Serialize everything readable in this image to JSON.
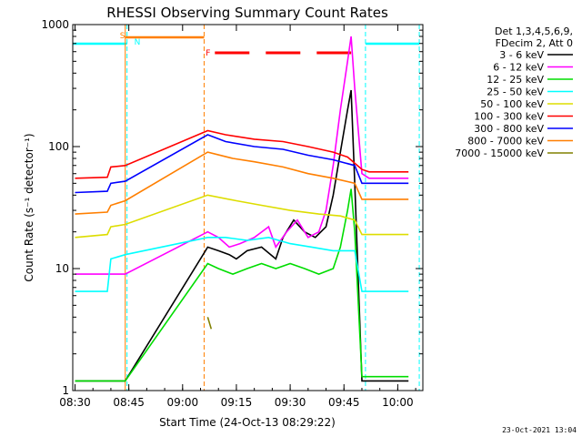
{
  "chart_data": {
    "type": "line",
    "title": "RHESSI Observing Summary Count Rates",
    "xlabel": "Start Time (24-Oct-13 08:29:22)",
    "ylabel": "Count Rate (s⁻¹ detector⁻¹)",
    "yscale": "log",
    "ylim": [
      1,
      1000
    ],
    "xlim": [
      "08:29:22",
      "10:07:00"
    ],
    "x_ticks": [
      "08:30",
      "08:45",
      "09:00",
      "09:15",
      "09:30",
      "09:45",
      "10:00"
    ],
    "y_ticks": [
      "1",
      "10",
      "100",
      "1000"
    ],
    "legend_header": [
      "Det 1,3,4,5,6,9,",
      "FDecim 2, Att 0"
    ],
    "legend_placement": "right",
    "series": [
      {
        "name": "3 - 6 keV",
        "color": "#000000",
        "points": [
          [
            "08:30",
            1.2
          ],
          [
            "08:44",
            1.2
          ],
          [
            "09:07",
            15
          ],
          [
            "09:10",
            14
          ],
          [
            "09:13",
            13
          ],
          [
            "09:15",
            12
          ],
          [
            "09:18",
            14
          ],
          [
            "09:22",
            15
          ],
          [
            "09:26",
            12
          ],
          [
            "09:28",
            18
          ],
          [
            "09:31",
            25
          ],
          [
            "09:34",
            20
          ],
          [
            "09:37",
            18
          ],
          [
            "09:40",
            22
          ],
          [
            "09:42",
            40
          ],
          [
            "09:44",
            90
          ],
          [
            "09:46",
            200
          ],
          [
            "09:47",
            290
          ],
          [
            "09:48",
            50
          ],
          [
            "09:50",
            1.2
          ],
          [
            "10:03",
            1.2
          ]
        ]
      },
      {
        "name": "6 - 12 keV",
        "color": "#ff00ff",
        "points": [
          [
            "08:30",
            9
          ],
          [
            "08:44",
            9
          ],
          [
            "09:07",
            20
          ],
          [
            "09:10",
            18
          ],
          [
            "09:13",
            15
          ],
          [
            "09:16",
            16
          ],
          [
            "09:20",
            18
          ],
          [
            "09:24",
            22
          ],
          [
            "09:26",
            15
          ],
          [
            "09:29",
            20
          ],
          [
            "09:32",
            25
          ],
          [
            "09:35",
            18
          ],
          [
            "09:38",
            20
          ],
          [
            "09:40",
            30
          ],
          [
            "09:42",
            70
          ],
          [
            "09:44",
            200
          ],
          [
            "09:46",
            500
          ],
          [
            "09:47",
            800
          ],
          [
            "09:48",
            300
          ],
          [
            "09:50",
            60
          ],
          [
            "09:52",
            55
          ],
          [
            "10:03",
            55
          ]
        ]
      },
      {
        "name": "12 - 25 keV",
        "color": "#00dd00",
        "points": [
          [
            "08:30",
            1.2
          ],
          [
            "08:44",
            1.2
          ],
          [
            "09:07",
            11
          ],
          [
            "09:10",
            10
          ],
          [
            "09:14",
            9
          ],
          [
            "09:18",
            10
          ],
          [
            "09:22",
            11
          ],
          [
            "09:26",
            10
          ],
          [
            "09:30",
            11
          ],
          [
            "09:34",
            10
          ],
          [
            "09:38",
            9
          ],
          [
            "09:42",
            10
          ],
          [
            "09:44",
            15
          ],
          [
            "09:46",
            30
          ],
          [
            "09:47",
            45
          ],
          [
            "09:48",
            20
          ],
          [
            "09:50",
            1.3
          ],
          [
            "10:03",
            1.3
          ]
        ]
      },
      {
        "name": "25 - 50 keV",
        "color": "#00ffff",
        "points": [
          [
            "08:30",
            6.5
          ],
          [
            "08:39",
            6.5
          ],
          [
            "08:40",
            12
          ],
          [
            "08:44",
            13
          ],
          [
            "09:07",
            18
          ],
          [
            "09:12",
            18
          ],
          [
            "09:18",
            17
          ],
          [
            "09:24",
            18
          ],
          [
            "09:30",
            16
          ],
          [
            "09:36",
            15
          ],
          [
            "09:42",
            14
          ],
          [
            "09:46",
            14
          ],
          [
            "09:48",
            14
          ],
          [
            "09:50",
            6.5
          ],
          [
            "10:03",
            6.5
          ]
        ]
      },
      {
        "name": "50 - 100 keV",
        "color": "#dddd00",
        "points": [
          [
            "08:30",
            18
          ],
          [
            "08:39",
            19
          ],
          [
            "08:40",
            22
          ],
          [
            "08:44",
            23
          ],
          [
            "09:07",
            40
          ],
          [
            "09:15",
            36
          ],
          [
            "09:22",
            33
          ],
          [
            "09:30",
            30
          ],
          [
            "09:38",
            28
          ],
          [
            "09:44",
            27
          ],
          [
            "09:48",
            25
          ],
          [
            "09:50",
            19
          ],
          [
            "10:03",
            19
          ]
        ]
      },
      {
        "name": "100 - 300 keV",
        "color": "#ff0000",
        "points": [
          [
            "08:30",
            55
          ],
          [
            "08:39",
            56
          ],
          [
            "08:40",
            68
          ],
          [
            "08:44",
            70
          ],
          [
            "09:07",
            135
          ],
          [
            "09:12",
            125
          ],
          [
            "09:20",
            115
          ],
          [
            "09:28",
            110
          ],
          [
            "09:35",
            100
          ],
          [
            "09:42",
            90
          ],
          [
            "09:46",
            82
          ],
          [
            "09:50",
            65
          ],
          [
            "09:52",
            62
          ],
          [
            "10:03",
            62
          ]
        ]
      },
      {
        "name": "300 - 800 keV",
        "color": "#0000ff",
        "points": [
          [
            "08:30",
            42
          ],
          [
            "08:39",
            43
          ],
          [
            "08:40",
            50
          ],
          [
            "08:44",
            52
          ],
          [
            "09:07",
            125
          ],
          [
            "09:12",
            110
          ],
          [
            "09:20",
            100
          ],
          [
            "09:28",
            95
          ],
          [
            "09:35",
            85
          ],
          [
            "09:42",
            78
          ],
          [
            "09:48",
            70
          ],
          [
            "09:50",
            50
          ],
          [
            "10:03",
            50
          ]
        ]
      },
      {
        "name": "800 - 7000 keV",
        "color": "#ff7f00",
        "points": [
          [
            "08:30",
            28
          ],
          [
            "08:39",
            29
          ],
          [
            "08:40",
            33
          ],
          [
            "08:44",
            36
          ],
          [
            "09:07",
            90
          ],
          [
            "09:14",
            80
          ],
          [
            "09:20",
            75
          ],
          [
            "09:28",
            68
          ],
          [
            "09:35",
            60
          ],
          [
            "09:42",
            55
          ],
          [
            "09:48",
            50
          ],
          [
            "09:50",
            37
          ],
          [
            "10:03",
            37
          ]
        ]
      },
      {
        "name": "7000 - 15000 keV",
        "color": "#808000",
        "points": [
          [
            "09:07",
            4
          ],
          [
            "09:08",
            3.2
          ]
        ]
      }
    ],
    "flags": [
      {
        "label": "S",
        "color": "#ff7f00",
        "start": "08:44",
        "end": "09:06",
        "style": "solid"
      },
      {
        "label": "N",
        "color": "#00ffff",
        "start": "08:45",
        "end": "08:45",
        "style": "none"
      },
      {
        "label": "F",
        "color": "#ff0000",
        "start": "09:09",
        "end": "09:47",
        "style": "dashed"
      }
    ],
    "night_intervals": [
      {
        "color": "#00ffff",
        "from": "08:29:22",
        "to": "08:44:30"
      },
      {
        "color": "#00ffff",
        "from": "09:51",
        "to": "10:06"
      }
    ]
  },
  "footer": {
    "timestamp": "23-Oct-2021 13:04"
  }
}
